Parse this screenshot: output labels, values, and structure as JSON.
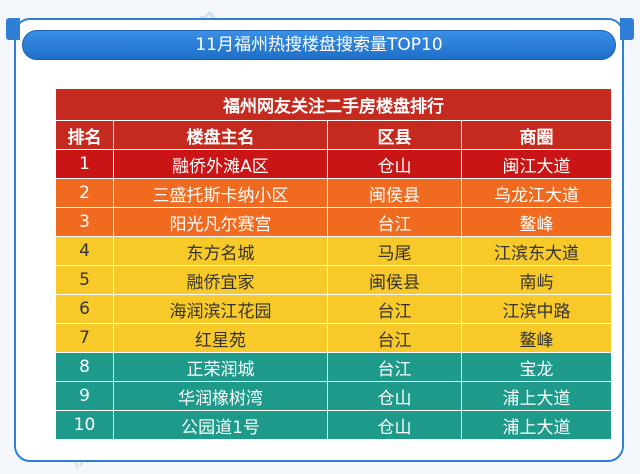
{
  "title": "11月福州热搜楼盘搜索量TOP10",
  "table_title": "福州网友关注二手房楼盘排行",
  "columns": [
    "排名",
    "楼盘主名",
    "区县",
    "商圈"
  ],
  "rows": [
    {
      "rank": "1",
      "name": "融侨外滩A区",
      "district": "仓山",
      "area": "闽江大道",
      "tier": "red"
    },
    {
      "rank": "2",
      "name": "三盛托斯卡纳小区",
      "district": "闽侯县",
      "area": "乌龙江大道",
      "tier": "orange"
    },
    {
      "rank": "3",
      "name": "阳光凡尔赛宫",
      "district": "台江",
      "area": "鳌峰",
      "tier": "orange"
    },
    {
      "rank": "4",
      "name": "东方名城",
      "district": "马尾",
      "area": "江滨东大道",
      "tier": "yellow"
    },
    {
      "rank": "5",
      "name": "融侨宜家",
      "district": "闽侯县",
      "area": "南屿",
      "tier": "yellow"
    },
    {
      "rank": "6",
      "name": "海润滨江花园",
      "district": "台江",
      "area": "江滨中路",
      "tier": "yellow"
    },
    {
      "rank": "7",
      "name": "红星苑",
      "district": "台江",
      "area": "鳌峰",
      "tier": "yellow"
    },
    {
      "rank": "8",
      "name": "正荣润城",
      "district": "台江",
      "area": "宝龙",
      "tier": "teal"
    },
    {
      "rank": "9",
      "name": "华润橡树湾",
      "district": "仓山",
      "area": "浦上大道",
      "tier": "teal"
    },
    {
      "rank": "10",
      "name": "公园道1号",
      "district": "仓山",
      "area": "浦上大道",
      "tier": "teal"
    }
  ],
  "watermark": "房天下Fang.com"
}
